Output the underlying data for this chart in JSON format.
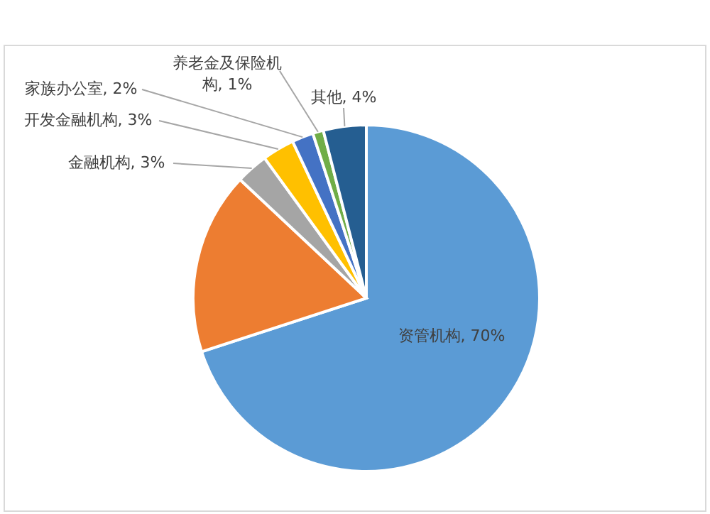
{
  "chart_data": {
    "type": "pie",
    "categories": [
      "资管机构",
      null,
      "金融机构",
      "开发金融机构",
      "家族办公室",
      "养老金及保险机构",
      "其他"
    ],
    "values": [
      70,
      17,
      3,
      3,
      2,
      1,
      4
    ],
    "value_labels": [
      "70%",
      null,
      "3%",
      "3%",
      "2%",
      "1%",
      "4%"
    ],
    "colors": [
      "#5b9bd5",
      "#ed7d31",
      "#a5a5a5",
      "#ffc000",
      "#4472c4",
      "#70ad47",
      "#255e91"
    ],
    "legend": false
  }
}
